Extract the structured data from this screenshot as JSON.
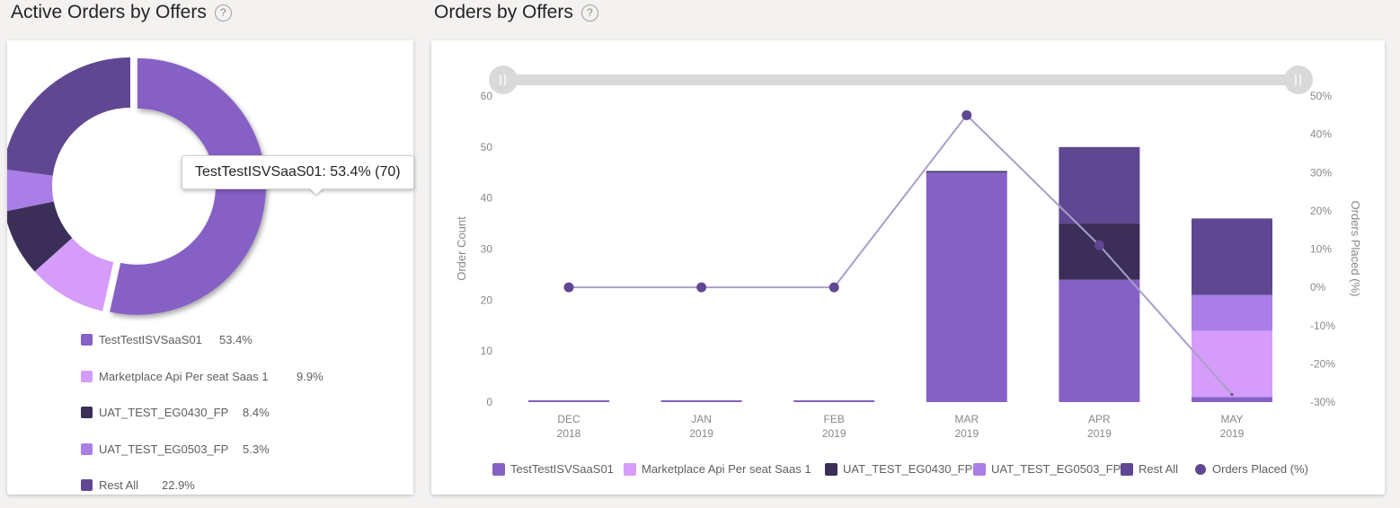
{
  "left_panel": {
    "title": "Active Orders by Offers",
    "tooltip": "TestTestISVSaaS01: 53.4% (70)"
  },
  "right_panel": {
    "title": "Orders by Offers"
  },
  "colors": {
    "TestTestISVSaaS01": "#8661c5",
    "Marketplace Api Per seat Saas 1": "#d59cfa",
    "UAT_TEST_EG0430_FP": "#3b2e58",
    "UAT_TEST_EG0503_FP": "#a97ee6",
    "Rest All": "#5f4792",
    "line": "#a99ec9",
    "marker": "#5f4792"
  },
  "chart_data": [
    {
      "type": "pie",
      "title": "Active Orders by Offers",
      "labels": [
        "TestTestISVSaaS01",
        "Marketplace Api Per seat Saas 1",
        "UAT_TEST_EG0430_FP",
        "UAT_TEST_EG0503_FP",
        "Rest All"
      ],
      "values": [
        53.4,
        9.9,
        8.4,
        5.3,
        22.9
      ],
      "value_labels": [
        "53.4%",
        "9.9%",
        "8.4%",
        "5.3%",
        "22.9%"
      ],
      "donut": true,
      "legend_position": "bottom",
      "tooltip": "TestTestISVSaaS01: 53.4% (70)"
    },
    {
      "type": "bar",
      "title": "Orders by Offers",
      "stacked": true,
      "categories": [
        "DEC 2018",
        "JAN 2019",
        "FEB 2019",
        "MAR 2019",
        "APR 2019",
        "MAY 2019"
      ],
      "category_lines": [
        [
          "DEC",
          "2018"
        ],
        [
          "JAN",
          "2019"
        ],
        [
          "FEB",
          "2019"
        ],
        [
          "MAR",
          "2019"
        ],
        [
          "APR",
          "2019"
        ],
        [
          "MAY",
          "2019"
        ]
      ],
      "series": [
        {
          "name": "TestTestISVSaaS01",
          "values": [
            0,
            0,
            0,
            45,
            24,
            1
          ]
        },
        {
          "name": "Marketplace Api Per seat Saas 1",
          "values": [
            0,
            0,
            0,
            0,
            0,
            13
          ]
        },
        {
          "name": "UAT_TEST_EG0430_FP",
          "values": [
            0,
            0,
            0,
            0.3,
            11,
            0
          ]
        },
        {
          "name": "UAT_TEST_EG0503_FP",
          "values": [
            0,
            0,
            0,
            0,
            0,
            7
          ]
        },
        {
          "name": "Rest All",
          "values": [
            0,
            0,
            0,
            0,
            15,
            15
          ]
        }
      ],
      "line_series": {
        "name": "Orders Placed (%)",
        "values": [
          0,
          0,
          0,
          45,
          11,
          -28
        ]
      },
      "ylabel": "Order Count",
      "ylim": [
        0,
        60
      ],
      "yticks": [
        0,
        10,
        20,
        30,
        40,
        50,
        60
      ],
      "y2label": "Orders Placed (%)",
      "y2lim": [
        -30,
        50
      ],
      "y2ticks": [
        "-30%",
        "-20%",
        "-10%",
        "0%",
        "10%",
        "20%",
        "30%",
        "40%",
        "50%"
      ],
      "legend": [
        "TestTestISVSaaS01",
        "Marketplace Api Per seat Saas 1",
        "UAT_TEST_EG0430_FP",
        "UAT_TEST_EG0503_FP",
        "Rest All",
        "Orders Placed (%)"
      ],
      "legend_position": "bottom",
      "grid": false
    }
  ]
}
